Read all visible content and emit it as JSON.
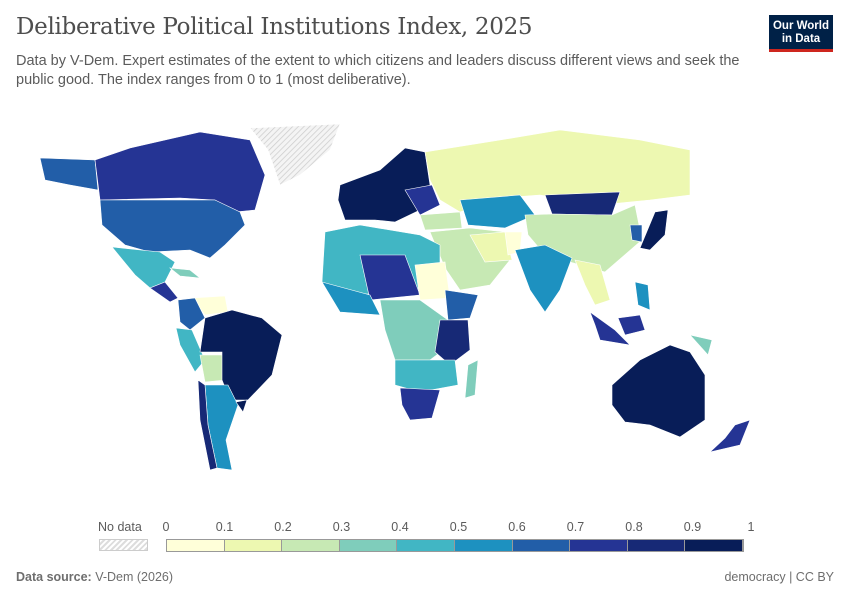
{
  "header": {
    "title": "Deliberative Political Institutions Index, 2025",
    "subtitle": "Data by V-Dem. Expert estimates of the extent to which citizens and leaders discuss different views and seek the public good. The index ranges from 0 to 1 (most deliberative).",
    "logo": "Our World in Data"
  },
  "legend": {
    "no_data_label": "No data",
    "ticks": [
      "0",
      "0.1",
      "0.2",
      "0.3",
      "0.4",
      "0.5",
      "0.6",
      "0.7",
      "0.8",
      "0.9",
      "1"
    ],
    "colors": [
      "#ffffd9",
      "#edf8b1",
      "#c7e9b4",
      "#7fcdbb",
      "#41b6c4",
      "#1d91c0",
      "#225ea8",
      "#253494",
      "#172976",
      "#081d58"
    ],
    "no_data_color": "#e0e0e0"
  },
  "footer": {
    "source_label": "Data source:",
    "source_value": "V-Dem (2026)",
    "license": "democracy | CC BY"
  }
}
